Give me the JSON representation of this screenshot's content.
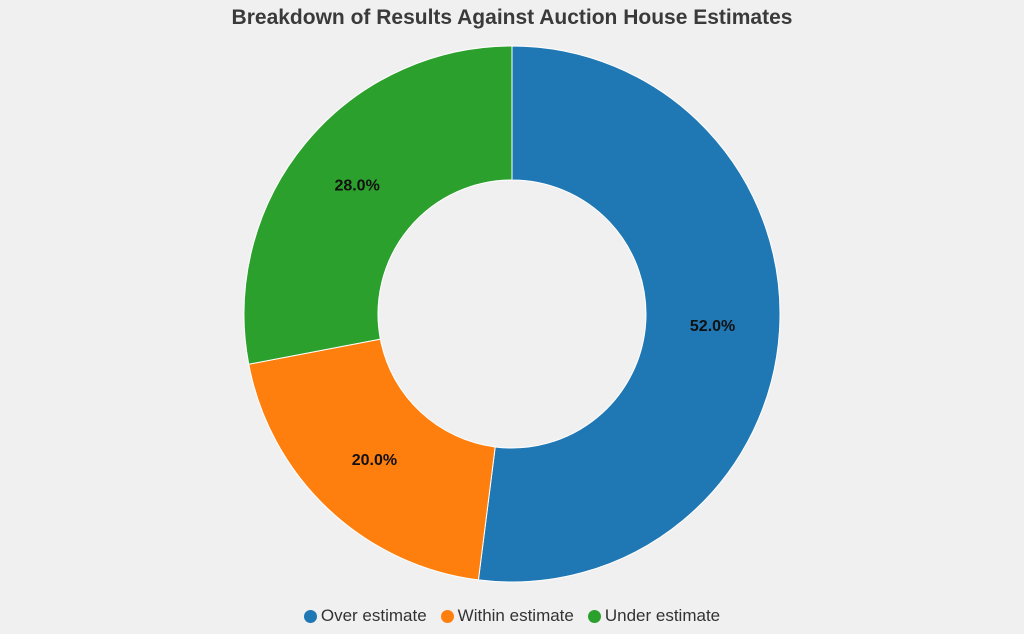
{
  "chart_data": {
    "type": "pie",
    "title": "Breakdown of Results Against Auction House Estimates",
    "donut": true,
    "legend_position": "bottom",
    "slices": [
      {
        "label": "Over estimate",
        "value": 52.0,
        "display": "52.0%",
        "color": "#1f77b4"
      },
      {
        "label": "Within estimate",
        "value": 20.0,
        "display": "20.0%",
        "color": "#ff7f0e"
      },
      {
        "label": "Under estimate",
        "value": 28.0,
        "display": "28.0%",
        "color": "#2ca02c"
      }
    ]
  }
}
